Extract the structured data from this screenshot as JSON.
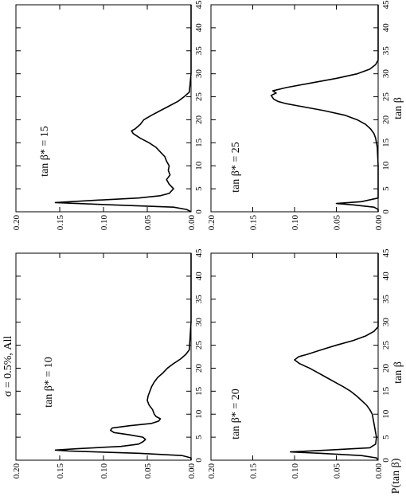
{
  "chart_data": [
    {
      "type": "line",
      "title": "σ = 0.5%, All",
      "annotation": "tan β* = 10",
      "color": "#000000",
      "x": [
        0,
        0.5,
        1,
        1.5,
        2,
        2.2,
        2.5,
        3,
        3.5,
        4,
        4.5,
        5,
        5.5,
        6,
        6.5,
        7,
        7.5,
        8,
        8.5,
        9,
        9.5,
        10,
        11,
        12,
        13,
        14,
        15,
        16,
        17,
        18,
        19,
        20,
        21,
        22,
        23,
        24,
        30,
        45
      ],
      "values": [
        0,
        0,
        0.01,
        0.06,
        0.14,
        0.155,
        0.13,
        0.08,
        0.06,
        0.055,
        0.052,
        0.055,
        0.07,
        0.088,
        0.092,
        0.09,
        0.07,
        0.045,
        0.037,
        0.035,
        0.04,
        0.042,
        0.044,
        0.048,
        0.05,
        0.049,
        0.047,
        0.045,
        0.042,
        0.038,
        0.032,
        0.027,
        0.02,
        0.012,
        0.006,
        0.002,
        0,
        0
      ],
      "xlim": [
        0,
        45
      ],
      "xticks": [
        0,
        5,
        10,
        15,
        20,
        25,
        30,
        35,
        40,
        45
      ],
      "ylim": [
        0,
        0.2
      ],
      "yticks": [
        {
          "value": 0,
          "label": "0.00"
        },
        {
          "value": 0.05,
          "label": "0.05"
        },
        {
          "value": 0.1,
          "label": "0.10"
        },
        {
          "value": 0.15,
          "label": "0.15"
        },
        {
          "value": 0.2,
          "label": "0.20"
        }
      ]
    },
    {
      "type": "line",
      "annotation": "tan β* = 15",
      "color": "#000000",
      "x": [
        0,
        0.5,
        1,
        1.5,
        2,
        2.5,
        3,
        3.5,
        4,
        5,
        6,
        7,
        8,
        9,
        10,
        11,
        12,
        13,
        14,
        15,
        16,
        17,
        17.6,
        18,
        19,
        20,
        21,
        22,
        23,
        24,
        25,
        26,
        30,
        45
      ],
      "values": [
        0,
        0.005,
        0.02,
        0.09,
        0.155,
        0.11,
        0.06,
        0.035,
        0.025,
        0.02,
        0.025,
        0.028,
        0.024,
        0.026,
        0.025,
        0.028,
        0.03,
        0.035,
        0.04,
        0.048,
        0.058,
        0.066,
        0.068,
        0.064,
        0.058,
        0.054,
        0.045,
        0.035,
        0.025,
        0.015,
        0.008,
        0.002,
        0,
        0
      ],
      "xlim": [
        0,
        45
      ],
      "xticks": [
        0,
        5,
        10,
        15,
        20,
        25,
        30,
        35,
        40,
        45
      ],
      "ylim": [
        0,
        0.2
      ],
      "yticks": [
        {
          "value": 0,
          "label": "0.00"
        },
        {
          "value": 0.05,
          "label": "0.05"
        },
        {
          "value": 0.1,
          "label": "0.10"
        },
        {
          "value": 0.15,
          "label": "0.15"
        },
        {
          "value": 0.2,
          "label": "0.20"
        }
      ]
    },
    {
      "type": "line",
      "annotation": "tan β* = 20",
      "xlabel": "tan β",
      "ylabel": "P(tan β)",
      "color": "#000000",
      "x": [
        0,
        0.5,
        1,
        1.5,
        1.8,
        2.2,
        2.7,
        3.5,
        5,
        7,
        9,
        10,
        11,
        12,
        13,
        14,
        15,
        16,
        17,
        18,
        19,
        20,
        21,
        21.8,
        22.5,
        23,
        24,
        25,
        26,
        27,
        28,
        29,
        45
      ],
      "values": [
        0,
        0.002,
        0.02,
        0.07,
        0.105,
        0.06,
        0.01,
        0.003,
        0.002,
        0.004,
        0.006,
        0.007,
        0.01,
        0.014,
        0.02,
        0.026,
        0.033,
        0.042,
        0.052,
        0.062,
        0.072,
        0.082,
        0.094,
        0.1,
        0.095,
        0.085,
        0.068,
        0.05,
        0.03,
        0.015,
        0.005,
        0,
        0
      ],
      "xlim": [
        0,
        45
      ],
      "xticks": [
        0,
        5,
        10,
        15,
        20,
        25,
        30,
        35,
        40,
        45
      ],
      "ylim": [
        0,
        0.2
      ],
      "yticks": [
        {
          "value": 0,
          "label": "0.00"
        },
        {
          "value": 0.05,
          "label": "0.05"
        },
        {
          "value": 0.1,
          "label": "0.10"
        },
        {
          "value": 0.15,
          "label": "0.15"
        },
        {
          "value": 0.2,
          "label": "0.20"
        }
      ]
    },
    {
      "type": "line",
      "annotation": "tan β* = 25",
      "xlabel": "tan β",
      "color": "#000000",
      "x": [
        0,
        0.5,
        1,
        1.5,
        1.8,
        2.2,
        3,
        5,
        10,
        14,
        16,
        17,
        18,
        19,
        20,
        21,
        22,
        22.5,
        23,
        23.5,
        24,
        24.5,
        25.3,
        25.8,
        26.3,
        27,
        28,
        29,
        30,
        31,
        32,
        33,
        45
      ],
      "values": [
        0,
        0,
        0.005,
        0.03,
        0.05,
        0.02,
        0,
        0,
        0,
        0.001,
        0.003,
        0.005,
        0.009,
        0.015,
        0.025,
        0.04,
        0.065,
        0.08,
        0.095,
        0.11,
        0.12,
        0.125,
        0.128,
        0.122,
        0.126,
        0.11,
        0.08,
        0.05,
        0.025,
        0.01,
        0.003,
        0,
        0
      ],
      "xlim": [
        0,
        45
      ],
      "xticks": [
        0,
        5,
        10,
        15,
        20,
        25,
        30,
        35,
        40,
        45
      ],
      "ylim": [
        0,
        0.2
      ],
      "yticks": [
        {
          "value": 0,
          "label": "0.00"
        },
        {
          "value": 0.05,
          "label": "0.05"
        },
        {
          "value": 0.1,
          "label": "0.10"
        },
        {
          "value": 0.15,
          "label": "0.15"
        },
        {
          "value": 0.2,
          "label": "0.20"
        }
      ]
    }
  ]
}
